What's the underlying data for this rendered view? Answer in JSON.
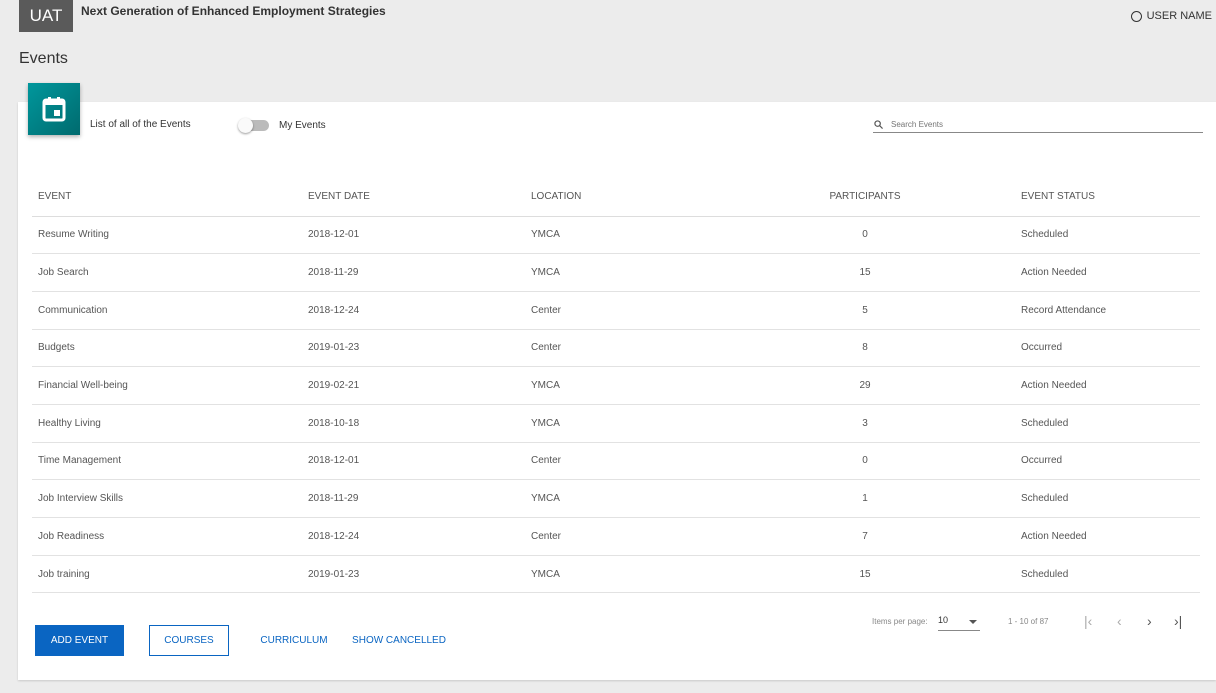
{
  "header": {
    "env": "UAT",
    "app_title": "Next Generation of Enhanced Employment Strategies",
    "user_name": "USER NAME"
  },
  "page": {
    "title": "Events",
    "subtitle": "List of all of the Events",
    "toggle_label": "My Events",
    "toggle_on": false,
    "search_placeholder": "Search Events"
  },
  "table": {
    "headers": [
      "EVENT",
      "EVENT DATE",
      "LOCATION",
      "PARTICIPANTS",
      "EVENT STATUS"
    ],
    "rows": [
      [
        "Resume Writing",
        "2018-12-01",
        "YMCA",
        "0",
        "Scheduled"
      ],
      [
        "Job Search",
        "2018-11-29",
        "YMCA",
        "15",
        "Action Needed"
      ],
      [
        "Communication",
        "2018-12-24",
        "Center",
        "5",
        "Record Attendance"
      ],
      [
        "Budgets",
        "2019-01-23",
        "Center",
        "8",
        "Occurred"
      ],
      [
        "Financial Well-being",
        "2019-02-21",
        "YMCA",
        "29",
        "Action Needed"
      ],
      [
        "Healthy Living",
        "2018-10-18",
        "YMCA",
        "3",
        "Scheduled"
      ],
      [
        "Time Management",
        "2018-12-01",
        "Center",
        "0",
        "Occurred"
      ],
      [
        "Job Interview Skills",
        "2018-11-29",
        "YMCA",
        "1",
        "Scheduled"
      ],
      [
        "Job Readiness",
        "2018-12-24",
        "Center",
        "7",
        "Action Needed"
      ],
      [
        "Job training",
        "2019-01-23",
        "YMCA",
        "15",
        "Scheduled"
      ]
    ]
  },
  "actions": {
    "add": "ADD EVENT",
    "courses": "COURSES",
    "curriculum": "CURRICULUM",
    "show_cancelled": "SHOW CANCELLED"
  },
  "paginator": {
    "items_label": "Items per page:",
    "page_size": "10",
    "range": "1 - 10 of 87"
  },
  "colors": {
    "accent": "#0a65c2",
    "tile": "#00979c"
  }
}
